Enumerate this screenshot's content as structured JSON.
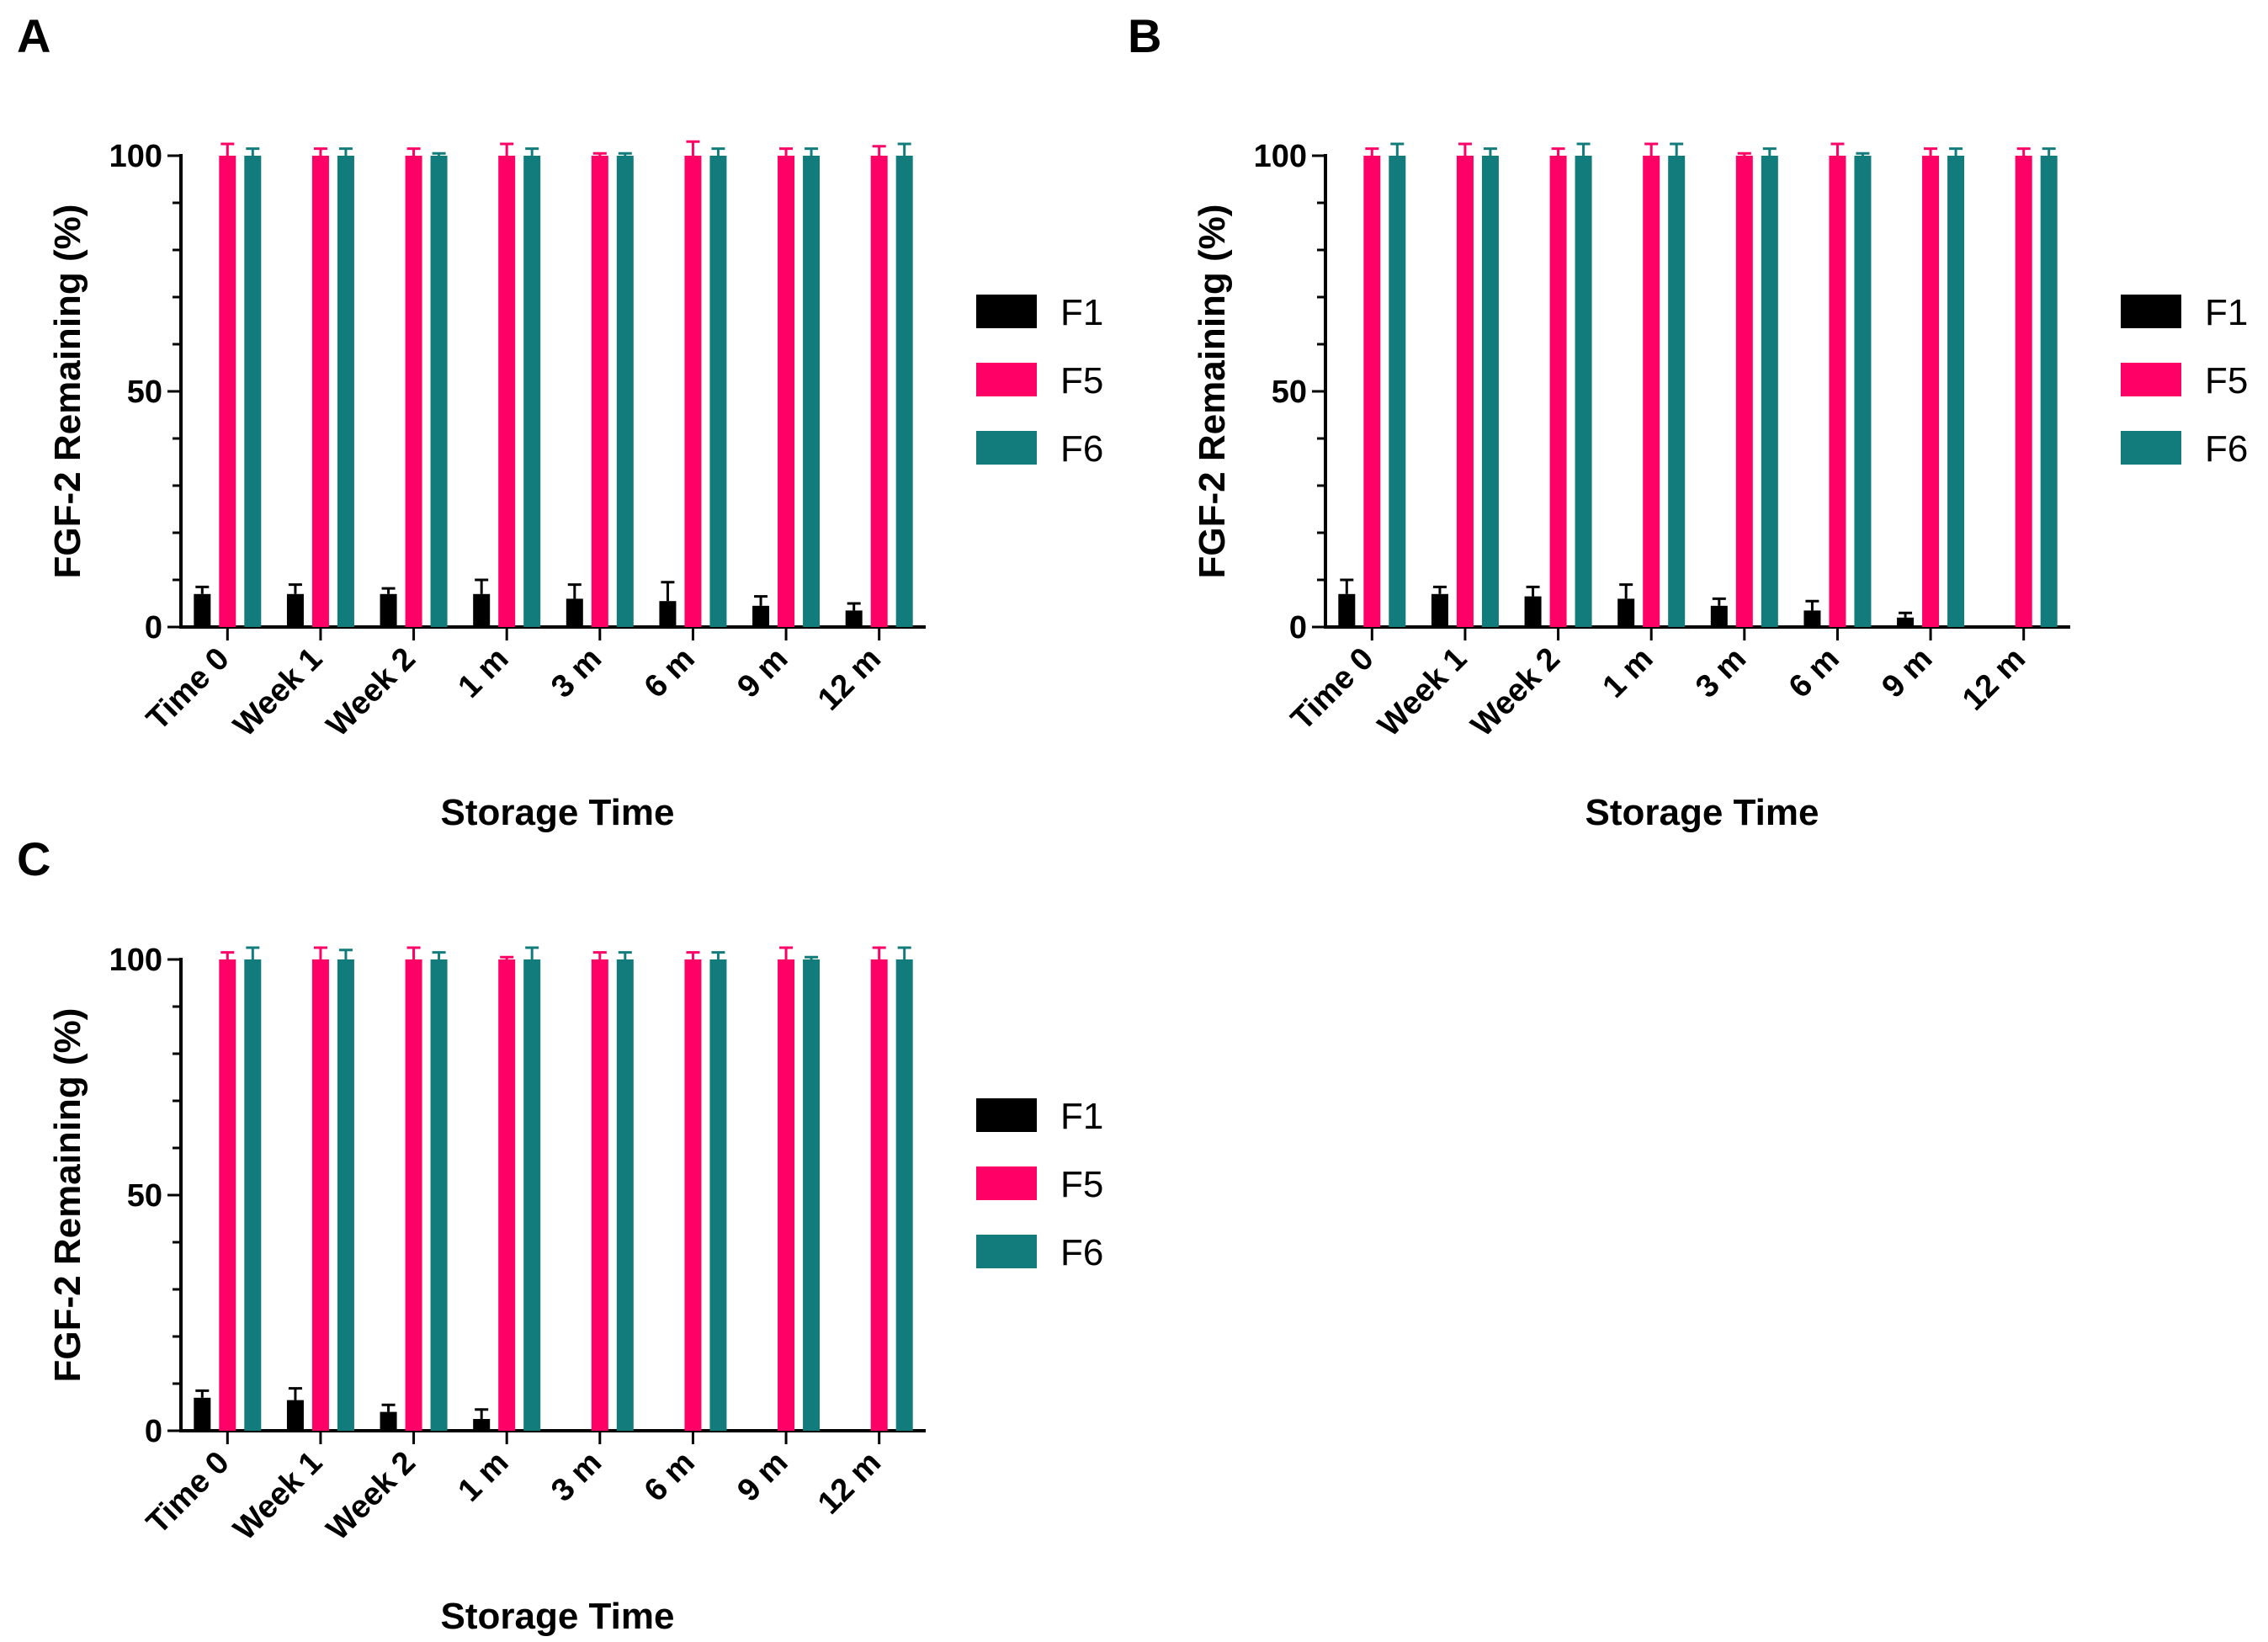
{
  "chart_data": [
    {
      "type": "bar",
      "panel": "A",
      "categories": [
        "Time 0",
        "Week 1",
        "Week 2",
        "1 m",
        "3 m",
        "6 m",
        "9 m",
        "12 m"
      ],
      "series": [
        {
          "name": "F1",
          "color": "#000000",
          "values": [
            7,
            7,
            7,
            7,
            6,
            5.5,
            4.5,
            3.5
          ],
          "errors": [
            1.5,
            2,
            1.2,
            3,
            3,
            4,
            2,
            1.5
          ]
        },
        {
          "name": "F5",
          "color": "#ff0066",
          "values": [
            100,
            100,
            100,
            100,
            100,
            100,
            100,
            100
          ],
          "errors": [
            2.5,
            1.5,
            1.5,
            2.5,
            0.5,
            3,
            1.5,
            2
          ]
        },
        {
          "name": "F6",
          "color": "#127c7c",
          "values": [
            100,
            100,
            100,
            100,
            100,
            100,
            100,
            100
          ],
          "errors": [
            1.5,
            1.5,
            0.5,
            1.5,
            0.5,
            1.5,
            1.5,
            2.5
          ]
        }
      ],
      "xlabel": "Storage Time",
      "ylabel": "FGF-2 Remaining (%)",
      "ylim": [
        0,
        100
      ],
      "yticks": [
        "0",
        "50",
        "100"
      ],
      "legend_position": "right"
    },
    {
      "type": "bar",
      "panel": "B",
      "categories": [
        "Time 0",
        "Week 1",
        "Week 2",
        "1 m",
        "3 m",
        "6 m",
        "9 m",
        "12 m"
      ],
      "series": [
        {
          "name": "F1",
          "color": "#000000",
          "values": [
            7,
            7,
            6.5,
            6,
            4.5,
            3.5,
            2,
            0
          ],
          "errors": [
            3,
            1.5,
            2,
            3,
            1.5,
            2,
            1,
            0
          ]
        },
        {
          "name": "F5",
          "color": "#ff0066",
          "values": [
            100,
            100,
            100,
            100,
            100,
            100,
            100,
            100
          ],
          "errors": [
            1.5,
            2.5,
            1.5,
            2.5,
            0.5,
            2.5,
            1.5,
            1.5
          ]
        },
        {
          "name": "F6",
          "color": "#127c7c",
          "values": [
            100,
            100,
            100,
            100,
            100,
            100,
            100,
            100
          ],
          "errors": [
            2.5,
            1.5,
            2.5,
            2.5,
            1.5,
            0.5,
            1.5,
            1.5
          ]
        }
      ],
      "xlabel": "Storage Time",
      "ylabel": "FGF-2 Remaining (%)",
      "ylim": [
        0,
        100
      ],
      "yticks": [
        "0",
        "50",
        "100"
      ],
      "legend_position": "right"
    },
    {
      "type": "bar",
      "panel": "C",
      "categories": [
        "Time 0",
        "Week 1",
        "Week 2",
        "1 m",
        "3 m",
        "6 m",
        "9 m",
        "12 m"
      ],
      "series": [
        {
          "name": "F1",
          "color": "#000000",
          "values": [
            7,
            6.5,
            4,
            2.5,
            0,
            0,
            0,
            0
          ],
          "errors": [
            1.5,
            2.5,
            1.5,
            2,
            0,
            0,
            0,
            0
          ]
        },
        {
          "name": "F5",
          "color": "#ff0066",
          "values": [
            100,
            100,
            100,
            100,
            100,
            100,
            100,
            100
          ],
          "errors": [
            1.5,
            2.5,
            2.5,
            0.5,
            1.5,
            1.5,
            2.5,
            2.5
          ]
        },
        {
          "name": "F6",
          "color": "#127c7c",
          "values": [
            100,
            100,
            100,
            100,
            100,
            100,
            100,
            100
          ],
          "errors": [
            2.5,
            2,
            1.5,
            2.5,
            1.5,
            1.5,
            0.5,
            2.5
          ]
        }
      ],
      "xlabel": "Storage Time",
      "ylabel": "FGF-2 Remaining (%)",
      "ylim": [
        0,
        100
      ],
      "yticks": [
        "0",
        "50",
        "100"
      ],
      "legend_position": "right"
    }
  ]
}
